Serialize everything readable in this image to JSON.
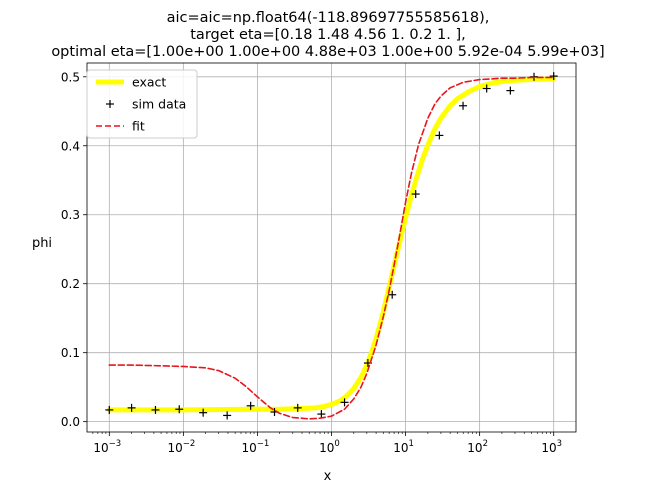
{
  "chart_data": {
    "type": "line",
    "title_lines": [
      "aic=aic=np.float64(-118.89697755585618),",
      "target eta=[0.18 1.48 4.56 1.   0.2  1.  ],",
      "optimal eta=[1.00e+00 1.00e+00 4.88e+03 1.00e+00 5.92e-04 5.99e+03]"
    ],
    "xlabel": "x",
    "ylabel": "phi",
    "x_scale": "log",
    "xlim": [
      0.0005,
      2000
    ],
    "ylim": [
      -0.015,
      0.52
    ],
    "grid": true,
    "legend_position": "upper-left",
    "x_ticks": [
      {
        "base": "10",
        "exp": "−3",
        "value": 0.001
      },
      {
        "base": "10",
        "exp": "−2",
        "value": 0.01
      },
      {
        "base": "10",
        "exp": "−1",
        "value": 0.1
      },
      {
        "base": "10",
        "exp": "0",
        "value": 1
      },
      {
        "base": "10",
        "exp": "1",
        "value": 10
      },
      {
        "base": "10",
        "exp": "2",
        "value": 100
      },
      {
        "base": "10",
        "exp": "3",
        "value": 1000
      }
    ],
    "y_ticks": [
      {
        "label": "0.0",
        "value": 0.0
      },
      {
        "label": "0.1",
        "value": 0.1
      },
      {
        "label": "0.2",
        "value": 0.2
      },
      {
        "label": "0.3",
        "value": 0.3
      },
      {
        "label": "0.4",
        "value": 0.4
      },
      {
        "label": "0.5",
        "value": 0.5
      }
    ],
    "series": [
      {
        "name": "exact",
        "style": "line",
        "color": "#ffff00",
        "x": [
          0.001,
          0.01,
          0.1,
          0.2,
          0.4,
          0.6,
          0.8,
          1.0,
          1.3,
          1.6,
          2.0,
          2.5,
          3.0,
          3.5,
          4.0,
          4.5,
          5.0,
          6.0,
          7.0,
          8.0,
          9.0,
          10.0,
          12.0,
          14.0,
          17.0,
          20.0,
          25.0,
          30.0,
          40.0,
          50.0,
          70.0,
          100.0,
          150.0,
          200.0,
          300.0,
          500.0,
          1000.0
        ],
        "y": [
          0.017,
          0.017,
          0.018,
          0.018,
          0.019,
          0.02,
          0.022,
          0.025,
          0.03,
          0.037,
          0.048,
          0.064,
          0.082,
          0.101,
          0.121,
          0.14,
          0.159,
          0.195,
          0.226,
          0.253,
          0.276,
          0.296,
          0.328,
          0.353,
          0.381,
          0.401,
          0.425,
          0.44,
          0.458,
          0.468,
          0.478,
          0.486,
          0.491,
          0.493,
          0.495,
          0.496,
          0.497
        ]
      },
      {
        "name": "sim data",
        "style": "markers",
        "marker": "+",
        "color": "#000000",
        "x": [
          0.001,
          0.002,
          0.0042,
          0.0088,
          0.0185,
          0.039,
          0.081,
          0.17,
          0.35,
          0.73,
          1.5,
          3.1,
          6.6,
          13.7,
          28.6,
          59.7,
          124.5,
          259.8,
          542.3,
          1000
        ],
        "y": [
          0.017,
          0.02,
          0.017,
          0.018,
          0.013,
          0.009,
          0.023,
          0.014,
          0.02,
          0.011,
          0.028,
          0.085,
          0.184,
          0.33,
          0.415,
          0.458,
          0.483,
          0.48,
          0.5,
          0.501
        ]
      },
      {
        "name": "fit",
        "style": "dashed",
        "color": "#e8151b",
        "x": [
          0.001,
          0.002,
          0.005,
          0.01,
          0.02,
          0.03,
          0.05,
          0.07,
          0.1,
          0.15,
          0.2,
          0.3,
          0.5,
          0.7,
          1.0,
          1.5,
          2.0,
          2.5,
          3.0,
          4.0,
          5.0,
          6.0,
          7.0,
          8.0,
          10.0,
          12.0,
          15.0,
          20.0,
          25.0,
          30.0,
          40.0,
          60.0,
          100.0,
          150.0,
          200.0,
          300.0,
          500.0,
          1000.0
        ],
        "y": [
          0.082,
          0.082,
          0.081,
          0.08,
          0.078,
          0.074,
          0.063,
          0.051,
          0.036,
          0.02,
          0.012,
          0.006,
          0.004,
          0.005,
          0.008,
          0.018,
          0.033,
          0.05,
          0.07,
          0.111,
          0.152,
          0.19,
          0.227,
          0.26,
          0.318,
          0.36,
          0.402,
          0.44,
          0.461,
          0.472,
          0.484,
          0.492,
          0.496,
          0.497,
          0.498,
          0.498,
          0.499,
          0.499
        ]
      }
    ]
  }
}
